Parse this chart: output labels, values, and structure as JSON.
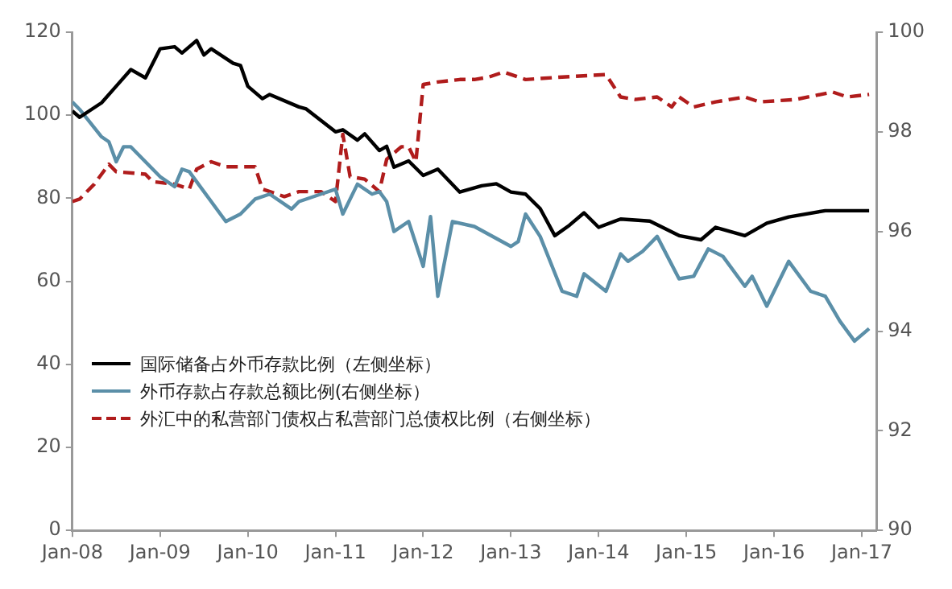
{
  "chart_data": {
    "type": "line",
    "xlim": [
      "2008-01",
      "2017-03"
    ],
    "xticks": [
      {
        "value": "2008-01",
        "label": "Jan-08"
      },
      {
        "value": "2009-01",
        "label": "Jan-09"
      },
      {
        "value": "2010-01",
        "label": "Jan-10"
      },
      {
        "value": "2011-01",
        "label": "Jan-11"
      },
      {
        "value": "2012-01",
        "label": "Jan-12"
      },
      {
        "value": "2013-01",
        "label": "Jan-13"
      },
      {
        "value": "2014-01",
        "label": "Jan-14"
      },
      {
        "value": "2015-01",
        "label": "Jan-15"
      },
      {
        "value": "2016-01",
        "label": "Jan-16"
      },
      {
        "value": "2017-01",
        "label": "Jan-17"
      }
    ],
    "ylim": [
      0,
      120
    ],
    "yticks": [
      0,
      20,
      40,
      60,
      80,
      100,
      120
    ],
    "y2lim": [
      90,
      100
    ],
    "y2ticks": [
      90,
      92,
      94,
      96,
      98,
      100
    ],
    "grid": false,
    "legend": "bottom left",
    "marker": "none",
    "series": [
      {
        "name": "国际储备占外币存款比例（左侧坐标）",
        "color": "#000000",
        "axis": "y",
        "line_style": "solid",
        "x": [
          "2008-01",
          "2008-02",
          "2008-05",
          "2008-07",
          "2008-09",
          "2008-11",
          "2009-01",
          "2009-03",
          "2009-04",
          "2009-06",
          "2009-07",
          "2009-08",
          "2009-11",
          "2009-12",
          "2010-01",
          "2010-03",
          "2010-04",
          "2010-08",
          "2010-09",
          "2011-01",
          "2011-02",
          "2011-04",
          "2011-05",
          "2011-07",
          "2011-08",
          "2011-09",
          "2011-11",
          "2012-01",
          "2012-03",
          "2012-06",
          "2012-09",
          "2012-11",
          "2013-01",
          "2013-03",
          "2013-05",
          "2013-07",
          "2013-09",
          "2013-11",
          "2014-01",
          "2014-04",
          "2014-08",
          "2014-12",
          "2015-03",
          "2015-05",
          "2015-09",
          "2015-12",
          "2016-03",
          "2016-08",
          "2016-11",
          "2017-02"
        ],
        "values": [
          101,
          99.5,
          103,
          107,
          111,
          109,
          116,
          116.5,
          115,
          118,
          114.5,
          116,
          112.5,
          112,
          107,
          104,
          105,
          102,
          101.5,
          96,
          96.5,
          94,
          95.5,
          91.5,
          92.5,
          87.5,
          89,
          85.5,
          87,
          81.5,
          83,
          83.5,
          81.5,
          81,
          77.5,
          71,
          73.5,
          76.5,
          73,
          75,
          74.5,
          71,
          70,
          73,
          71,
          74,
          75.5,
          77,
          77,
          77
        ]
      },
      {
        "name": "外币存款占存款总额比例(右侧坐标）",
        "color": "#5b8fa8",
        "axis": "y2",
        "line_style": "solid",
        "x": [
          "2008-01",
          "2008-02",
          "2008-05",
          "2008-06",
          "2008-07",
          "2008-08",
          "2008-09",
          "2009-01",
          "2009-03",
          "2009-04",
          "2009-05",
          "2009-08",
          "2009-10",
          "2009-12",
          "2010-02",
          "2010-04",
          "2010-07",
          "2010-08",
          "2010-11",
          "2011-01",
          "2011-02",
          "2011-04",
          "2011-06",
          "2011-07",
          "2011-08",
          "2011-09",
          "2011-11",
          "2012-01",
          "2012-02",
          "2012-03",
          "2012-05",
          "2012-08",
          "2013-01",
          "2013-02",
          "2013-03",
          "2013-05",
          "2013-08",
          "2013-10",
          "2013-11",
          "2014-02",
          "2014-04",
          "2014-05",
          "2014-07",
          "2014-09",
          "2014-12",
          "2015-02",
          "2015-04",
          "2015-06",
          "2015-09",
          "2015-10",
          "2015-12",
          "2016-03",
          "2016-06",
          "2016-08",
          "2016-10",
          "2016-12",
          "2017-02"
        ],
        "values": [
          98.6,
          98.45,
          97.9,
          97.8,
          97.4,
          97.7,
          97.7,
          97.1,
          96.9,
          97.25,
          97.2,
          96.6,
          96.2,
          96.35,
          96.65,
          96.75,
          96.45,
          96.6,
          96.75,
          96.85,
          96.35,
          96.95,
          96.75,
          96.8,
          96.6,
          96,
          96.2,
          95.3,
          96.3,
          94.7,
          96.2,
          96.1,
          95.7,
          95.8,
          96.35,
          95.9,
          94.8,
          94.7,
          95.15,
          94.8,
          95.55,
          95.4,
          95.6,
          95.9,
          95.05,
          95.1,
          95.65,
          95.5,
          94.9,
          95.1,
          94.5,
          95.4,
          94.8,
          94.7,
          94.2,
          93.8,
          94.05
        ]
      },
      {
        "name": "外汇中的私营部门债权占私营部门总债权比例（右侧坐标）",
        "color": "#b01c1c",
        "axis": "y2",
        "line_style": "dashed",
        "x": [
          "2008-01",
          "2008-02",
          "2008-04",
          "2008-06",
          "2008-07",
          "2008-11",
          "2008-12",
          "2009-03",
          "2009-05",
          "2009-06",
          "2009-08",
          "2009-10",
          "2010-02",
          "2010-03",
          "2010-06",
          "2010-08",
          "2010-11",
          "2011-01",
          "2011-02",
          "2011-03",
          "2011-05",
          "2011-07",
          "2011-08",
          "2011-10",
          "2011-11",
          "2011-12",
          "2012-01",
          "2012-03",
          "2012-06",
          "2012-08",
          "2012-10",
          "2012-12",
          "2013-03",
          "2013-08",
          "2014-02",
          "2014-04",
          "2014-06",
          "2014-09",
          "2014-11",
          "2014-12",
          "2015-02",
          "2015-05",
          "2015-09",
          "2015-11",
          "2016-04",
          "2016-09",
          "2016-11",
          "2017-02"
        ],
        "values": [
          96.6,
          96.65,
          96.95,
          97.35,
          97.2,
          97.15,
          97,
          96.95,
          96.85,
          97.25,
          97.4,
          97.3,
          97.3,
          96.85,
          96.7,
          96.8,
          96.8,
          96.6,
          97.95,
          97.1,
          97.05,
          96.8,
          97.45,
          97.7,
          97.7,
          97.4,
          98.95,
          99,
          99.05,
          99.05,
          99.1,
          99.2,
          99.05,
          99.1,
          99.15,
          98.7,
          98.65,
          98.7,
          98.5,
          98.7,
          98.5,
          98.6,
          98.7,
          98.6,
          98.65,
          98.8,
          98.7,
          98.75
        ]
      }
    ]
  }
}
